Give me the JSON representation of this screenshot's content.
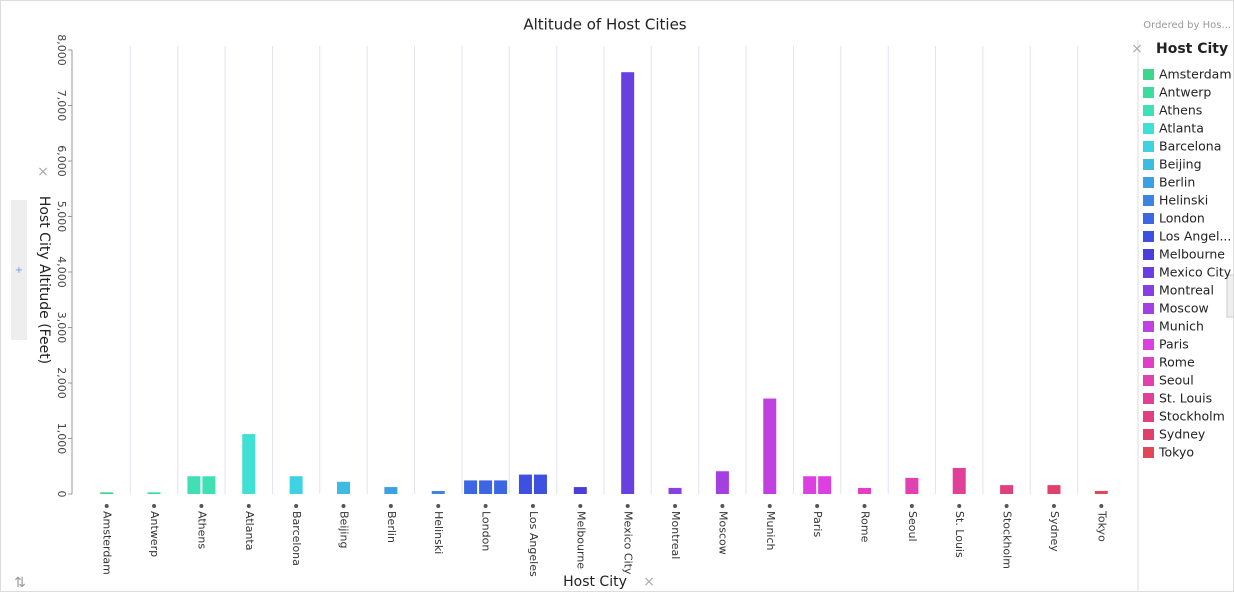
{
  "chart_data": {
    "type": "bar",
    "title": "Altitude of Host Cities",
    "subtitle": "Ordered by Hos...",
    "x_label": "Host City",
    "y_label": "Host City Altitude (Feet)",
    "categories": [
      "Amsterdam",
      "Antwerp",
      "Athens",
      "Atlanta",
      "Barcelona",
      "Beijing",
      "Berlin",
      "Helinski",
      "London",
      "Los Angeles",
      "Melbourne",
      "Mexico City",
      "Montreal",
      "Moscow",
      "Munich",
      "Paris",
      "Rome",
      "Seoul",
      "St. Louis",
      "Stockholm",
      "Sydney",
      "Tokyo"
    ],
    "values": [
      [
        30
      ],
      [
        30
      ],
      [
        320,
        320
      ],
      [
        1080
      ],
      [
        320
      ],
      [
        220
      ],
      [
        125
      ],
      [
        55
      ],
      [
        245,
        245,
        245
      ],
      [
        350,
        350
      ],
      [
        125
      ],
      [
        7600
      ],
      [
        110
      ],
      [
        410
      ],
      [
        1720
      ],
      [
        320,
        320
      ],
      [
        110
      ],
      [
        290
      ],
      [
        470
      ],
      [
        160
      ],
      [
        160
      ],
      [
        55
      ]
    ],
    "colors": [
      "#3dd68c",
      "#3ddc9c",
      "#40e0b4",
      "#40e0d4",
      "#3ed2e2",
      "#3dbbe2",
      "#3da0e2",
      "#3d84e2",
      "#3d66e2",
      "#3d50e0",
      "#4a3fd8",
      "#6a3fe0",
      "#8640e0",
      "#a540e0",
      "#c040e0",
      "#dd40e0",
      "#e040c8",
      "#e040b0",
      "#e04098",
      "#e04080",
      "#e0406a",
      "#e0485a"
    ],
    "ylim": [
      0,
      8000
    ],
    "yticks": [
      0,
      {
        "value": 1000,
        "label": "1,000"
      },
      {
        "value": 2000,
        "label": "2,000"
      },
      {
        "value": 3000,
        "label": "3,000"
      },
      {
        "value": 4000,
        "label": "4,000"
      },
      {
        "value": 5000,
        "label": "5,000"
      },
      {
        "value": 6000,
        "label": "6,000"
      },
      {
        "value": 7000,
        "label": "7,000"
      },
      {
        "value": 8000,
        "label": "8,000"
      }
    ],
    "grid": true,
    "legend": {
      "title": "Host City",
      "position": "right",
      "items": [
        "Amsterdam",
        "Antwerp",
        "Athens",
        "Atlanta",
        "Barcelona",
        "Beijing",
        "Berlin",
        "Helinski",
        "London",
        "Los Angel...",
        "Melbourne",
        "Mexico City",
        "Montreal",
        "Moscow",
        "Munich",
        "Paris",
        "Rome",
        "Seoul",
        "St. Louis",
        "Stockholm",
        "Sydney",
        "Tokyo"
      ]
    }
  }
}
